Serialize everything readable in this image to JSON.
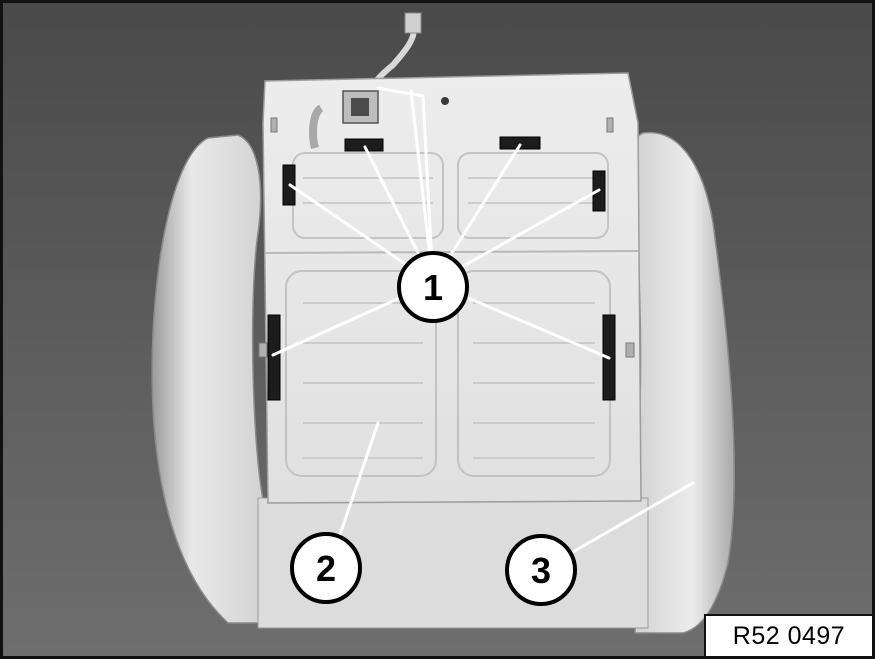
{
  "figure": {
    "reference_code": "R52 0497"
  },
  "callouts": [
    {
      "id": "1",
      "label": "1"
    },
    {
      "id": "2",
      "label": "2"
    },
    {
      "id": "3",
      "label": "3"
    }
  ],
  "colors": {
    "background": "#5c5c5c",
    "foam": "#e8e8e8",
    "clip": "#1a1a1a",
    "leader_line": "#ffffff",
    "callout_fill": "#ffffff",
    "callout_stroke": "#000000"
  }
}
